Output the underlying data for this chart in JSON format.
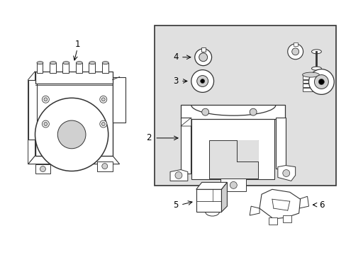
{
  "background_color": "#ffffff",
  "fig_width": 4.89,
  "fig_height": 3.6,
  "dpi": 100,
  "line_color": "#333333",
  "light_gray": "#d0d0d0",
  "box_gray": "#e0e0e0",
  "label_fontsize": 8.5
}
